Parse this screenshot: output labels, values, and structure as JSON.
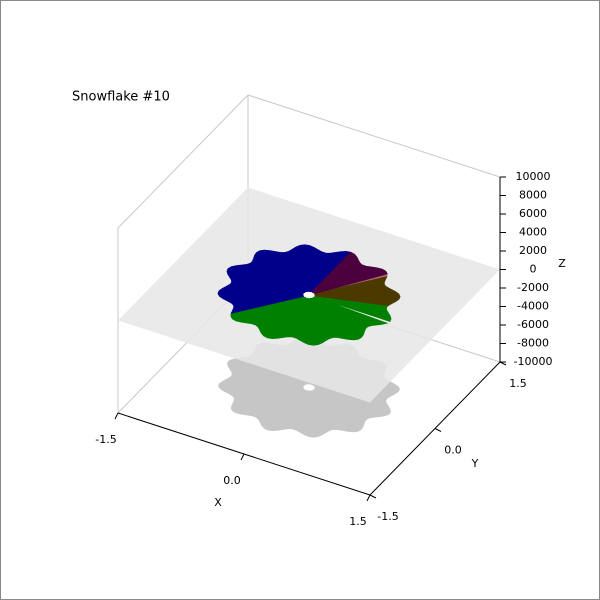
{
  "chart_data": {
    "type": "scatter3d",
    "title": "Snowflake #10",
    "xlabel": "X",
    "ylabel": "Y",
    "zlabel": "Z",
    "xlim": [
      -1.5,
      1.5
    ],
    "xticks": [
      {
        "value": -1.5,
        "label": "-1.5"
      },
      {
        "value": 0,
        "label": "0.0"
      },
      {
        "value": 1.5,
        "label": "1.5"
      }
    ],
    "ylim": [
      -1.5,
      1.5
    ],
    "yticks": [
      {
        "value": -1.5,
        "label": "-1.5"
      },
      {
        "value": 0,
        "label": "0.0"
      },
      {
        "value": 1.5,
        "label": "1.5"
      }
    ],
    "zlim": [
      -10000,
      10000
    ],
    "zticks": [
      -10000,
      -8000,
      -6000,
      -4000,
      -2000,
      0,
      2000,
      4000,
      6000,
      8000,
      10000
    ],
    "colors": [
      "#00008b",
      "#008000",
      "#8b0000"
    ]
  }
}
